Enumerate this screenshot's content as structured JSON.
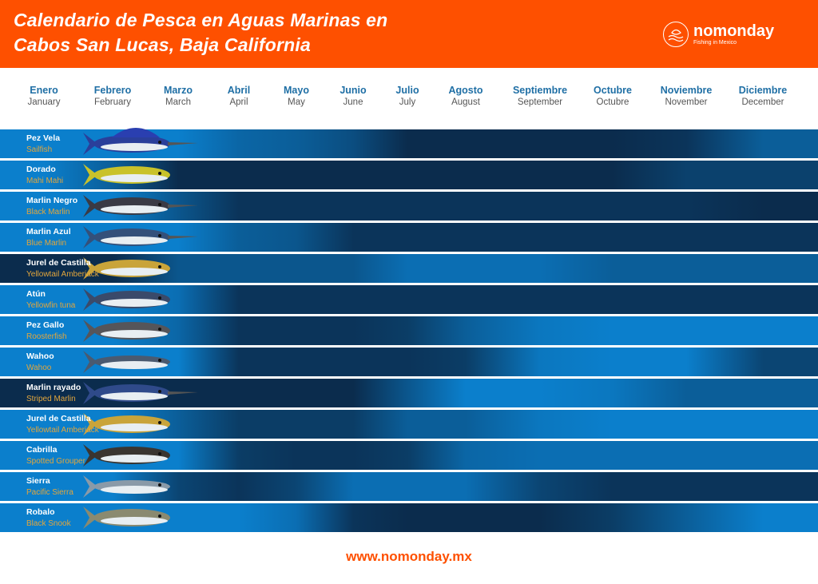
{
  "header": {
    "title_line1": "Calendario de Pesca en Aguas Marinas en",
    "title_line2": "Cabos San Lucas, Baja California",
    "logo_name": "nomonday",
    "logo_tagline": "Fishing in Mexico"
  },
  "colors": {
    "brand": "#fe5000",
    "season_high": "#0b7fcc",
    "season_low": "#0b2c4d"
  },
  "months": [
    {
      "es": "Enero",
      "en": "January"
    },
    {
      "es": "Febrero",
      "en": "February"
    },
    {
      "es": "Marzo",
      "en": "March"
    },
    {
      "es": "Abril",
      "en": "April"
    },
    {
      "es": "Mayo",
      "en": "May"
    },
    {
      "es": "Junio",
      "en": "June"
    },
    {
      "es": "Julio",
      "en": "July"
    },
    {
      "es": "Agosto",
      "en": "August"
    },
    {
      "es": "Septiembre",
      "en": "September"
    },
    {
      "es": "Octubre",
      "en": "Octubre"
    },
    {
      "es": "Noviembre",
      "en": "November"
    },
    {
      "es": "Diciembre",
      "en": "December"
    }
  ],
  "species": [
    {
      "es": "Pez Vela",
      "en": "Sailfish",
      "fish": "sailfish",
      "body": "#2a3f9a",
      "season": [
        1,
        1,
        1,
        0.7,
        0.6,
        0.4,
        0,
        0,
        0,
        0,
        0.1,
        0.6
      ]
    },
    {
      "es": "Dorado",
      "en": "Mahi Mahi",
      "fish": "mahi",
      "body": "#c9c22a",
      "season": [
        1,
        0.6,
        0,
        0,
        0,
        0,
        0,
        0,
        0,
        0,
        0.25,
        0.25
      ]
    },
    {
      "es": "Marlin Negro",
      "en": "Black Marlin",
      "fish": "marlin",
      "body": "#3a3a44",
      "season": [
        1,
        1,
        0.5,
        0.1,
        0.1,
        0.1,
        0.1,
        0.1,
        0.1,
        0.1,
        0.1,
        0
      ]
    },
    {
      "es": "Marlin Azul",
      "en": "Blue Marlin",
      "fish": "marlin",
      "body": "#34507a",
      "season": [
        1,
        1,
        1,
        0.6,
        0.5,
        0.1,
        0.1,
        0.1,
        0.1,
        0.1,
        0.1,
        0.1
      ]
    },
    {
      "es": "Jurel de Castilla",
      "en": "Yellowtail Amberjack",
      "fish": "yellowtail",
      "body": "#c9a43a",
      "season": [
        0,
        0,
        0.5,
        0.5,
        0.5,
        0.5,
        0.8,
        0.8,
        0.8,
        0.6,
        0.6,
        0.6
      ]
    },
    {
      "es": "Atún",
      "en": "Yellowfin tuna",
      "fish": "tuna",
      "body": "#3a4a6a",
      "season": [
        1,
        1,
        0.8,
        0.1,
        0.1,
        0.1,
        0.1,
        0.1,
        0.1,
        0.1,
        0.1,
        0.1
      ]
    },
    {
      "es": "Pez Gallo",
      "en": "Roosterfish",
      "fish": "roosterfish",
      "body": "#55555a",
      "season": [
        1,
        1,
        0.7,
        0.1,
        0.1,
        0.1,
        0.2,
        0.6,
        0.9,
        1,
        1,
        1
      ]
    },
    {
      "es": "Wahoo",
      "en": "Wahoo",
      "fish": "wahoo",
      "body": "#4a5a70",
      "season": [
        1,
        1,
        1,
        0.1,
        0.1,
        0.1,
        0.1,
        0.2,
        0.9,
        1,
        1,
        0.3
      ]
    },
    {
      "es": "Marlin rayado",
      "en": "Striped Marlin",
      "fish": "marlin",
      "body": "#2f4a8a",
      "season": [
        0,
        0,
        0,
        0,
        0,
        0,
        0.5,
        1,
        1,
        0.9,
        0.6,
        0.6
      ]
    },
    {
      "es": "Jurel de Castilla",
      "en": "Yellowtail Amberjack",
      "fish": "yellowtail",
      "body": "#c9a43a",
      "season": [
        1,
        1,
        0.6,
        0.2,
        0.2,
        0.2,
        0.6,
        0.6,
        0.9,
        1,
        1,
        1
      ]
    },
    {
      "es": "Cabrilla",
      "en": "Spotted Grouper",
      "fish": "grouper",
      "body": "#3a3530",
      "season": [
        1,
        1,
        1,
        0.2,
        0.1,
        0.1,
        0.2,
        0.7,
        0.8,
        0.8,
        0.8,
        0.8
      ]
    },
    {
      "es": "Sierra",
      "en": "Pacific Sierra",
      "fish": "sierra",
      "body": "#8a9aa8",
      "season": [
        1,
        1,
        0.3,
        0.1,
        0.3,
        0.8,
        0.8,
        0.8,
        0.3,
        0.1,
        0.1,
        0.1
      ]
    },
    {
      "es": "Robalo",
      "en": "Black Snook",
      "fish": "snook",
      "body": "#8a8a70",
      "season": [
        1,
        1,
        1,
        1,
        0.8,
        0.1,
        0,
        0,
        0,
        0.2,
        0.6,
        1
      ]
    }
  ],
  "footer": {
    "url": "www.nomonday.mx"
  }
}
